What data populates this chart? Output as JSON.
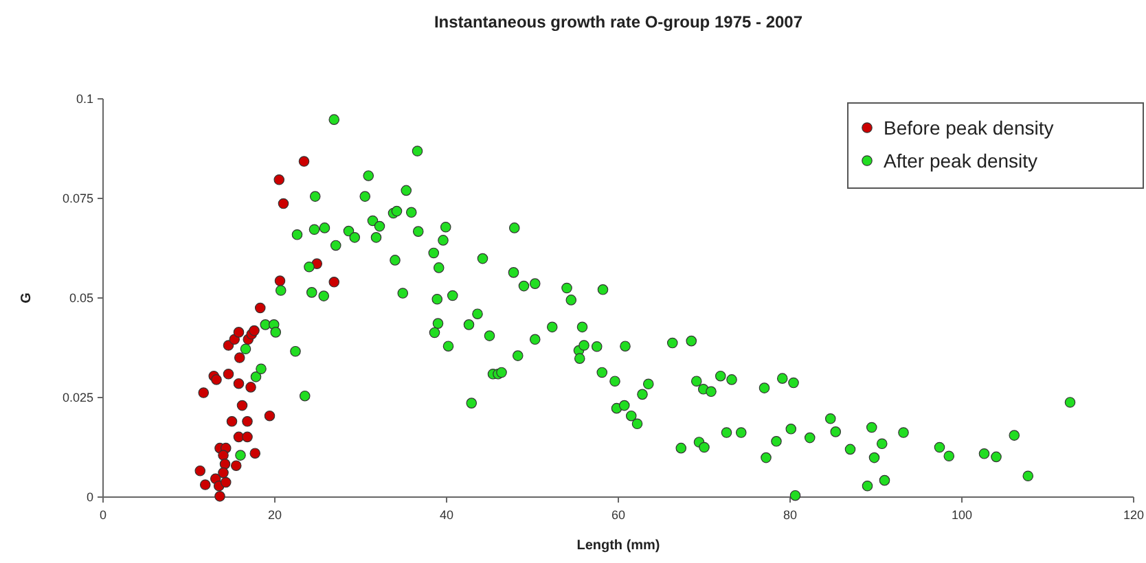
{
  "chart_data": {
    "type": "scatter",
    "title": "Instantaneous growth rate O-group 1975 - 2007",
    "xlabel": "Length (mm)",
    "ylabel": "G",
    "xlim": [
      0,
      120
    ],
    "xticks": [
      0,
      20,
      40,
      60,
      80,
      100,
      120
    ],
    "ylim": [
      0,
      0.1
    ],
    "yticks": [
      0,
      0.025,
      0.05,
      0.075,
      0.1
    ],
    "grid": false,
    "legend": "top right",
    "marker": "circle",
    "series": [
      {
        "name": "Before peak density",
        "color": "#cc0000",
        "x": [
          11.3,
          11.9,
          11.7,
          12.9,
          13.2,
          13.1,
          13.6,
          13.5,
          13.6,
          14.3,
          14.0,
          14.2,
          14.0,
          14.3,
          14.6,
          14.6,
          15.3,
          15.8,
          15.0,
          15.5,
          15.8,
          15.9,
          15.8,
          16.8,
          16.8,
          16.2,
          16.9,
          17.3,
          17.2,
          17.7,
          17.6,
          18.3,
          19.4,
          20.5,
          21.0,
          20.6,
          23.4,
          24.9,
          26.9
        ],
        "values": [
          0.0066,
          0.0031,
          0.0262,
          0.0304,
          0.0295,
          0.0046,
          0.0002,
          0.0028,
          0.0123,
          0.0123,
          0.0105,
          0.0083,
          0.0061,
          0.0037,
          0.0309,
          0.0381,
          0.0396,
          0.0414,
          0.019,
          0.0079,
          0.0285,
          0.035,
          0.0151,
          0.0151,
          0.019,
          0.023,
          0.0396,
          0.0409,
          0.0276,
          0.011,
          0.0418,
          0.0475,
          0.0204,
          0.0797,
          0.0737,
          0.0543,
          0.0843,
          0.0586,
          0.054
        ]
      },
      {
        "name": "After peak density",
        "color": "#22dd22",
        "x": [
          16.6,
          16.0,
          17.8,
          18.4,
          18.9,
          19.9,
          20.1,
          20.7,
          22.4,
          22.6,
          23.5,
          24.0,
          24.3,
          24.7,
          24.6,
          25.8,
          25.7,
          27.1,
          26.9,
          28.6,
          29.3,
          30.5,
          30.9,
          31.4,
          31.8,
          32.2,
          33.8,
          34.2,
          34.0,
          34.9,
          35.3,
          35.9,
          36.6,
          36.7,
          38.5,
          39.0,
          38.6,
          38.9,
          39.1,
          39.6,
          39.9,
          40.2,
          40.7,
          42.6,
          42.9,
          43.6,
          44.2,
          45.0,
          45.4,
          46.0,
          46.4,
          47.8,
          47.9,
          48.3,
          49.0,
          50.3,
          50.3,
          52.3,
          54.0,
          54.5,
          55.4,
          55.5,
          55.8,
          56.0,
          57.5,
          58.2,
          58.1,
          59.6,
          59.8,
          60.7,
          60.8,
          61.5,
          62.2,
          62.8,
          63.5,
          66.3,
          67.3,
          68.5,
          69.1,
          69.4,
          70.0,
          69.9,
          70.8,
          71.9,
          72.6,
          73.2,
          74.3,
          77.0,
          77.2,
          78.4,
          79.1,
          80.1,
          80.4,
          80.6,
          82.3,
          84.7,
          85.3,
          87.0,
          89.0,
          89.5,
          89.8,
          90.7,
          91.0,
          93.2,
          97.4,
          98.5,
          102.6,
          104.0,
          106.1,
          107.7,
          112.6
        ],
        "values": [
          0.0372,
          0.0105,
          0.0302,
          0.0322,
          0.0433,
          0.0433,
          0.0414,
          0.0519,
          0.0366,
          0.0659,
          0.0254,
          0.0578,
          0.0514,
          0.0755,
          0.0672,
          0.0676,
          0.0505,
          0.0632,
          0.0948,
          0.0668,
          0.0652,
          0.0755,
          0.0807,
          0.0694,
          0.0652,
          0.068,
          0.0713,
          0.0718,
          0.0595,
          0.0512,
          0.077,
          0.0715,
          0.0869,
          0.0667,
          0.0613,
          0.0436,
          0.0413,
          0.0497,
          0.0576,
          0.0645,
          0.0678,
          0.0379,
          0.0506,
          0.0433,
          0.0236,
          0.046,
          0.0599,
          0.0405,
          0.0309,
          0.0309,
          0.0313,
          0.0564,
          0.0676,
          0.0355,
          0.053,
          0.0536,
          0.0396,
          0.0427,
          0.0525,
          0.0495,
          0.0368,
          0.0348,
          0.0427,
          0.0381,
          0.0378,
          0.0521,
          0.0313,
          0.0291,
          0.0223,
          0.023,
          0.0379,
          0.0204,
          0.0184,
          0.0258,
          0.0284,
          0.0387,
          0.0123,
          0.0392,
          0.0291,
          0.0138,
          0.0125,
          0.0271,
          0.0265,
          0.0304,
          0.0162,
          0.0295,
          0.0162,
          0.0274,
          0.0099,
          0.014,
          0.0298,
          0.0171,
          0.0287,
          0.0004,
          0.0149,
          0.0197,
          0.0164,
          0.012,
          0.0028,
          0.0175,
          0.0099,
          0.0134,
          0.0042,
          0.0162,
          0.0125,
          0.0103,
          0.0109,
          0.0101,
          0.0155,
          0.0053,
          0.0238
        ]
      }
    ]
  }
}
